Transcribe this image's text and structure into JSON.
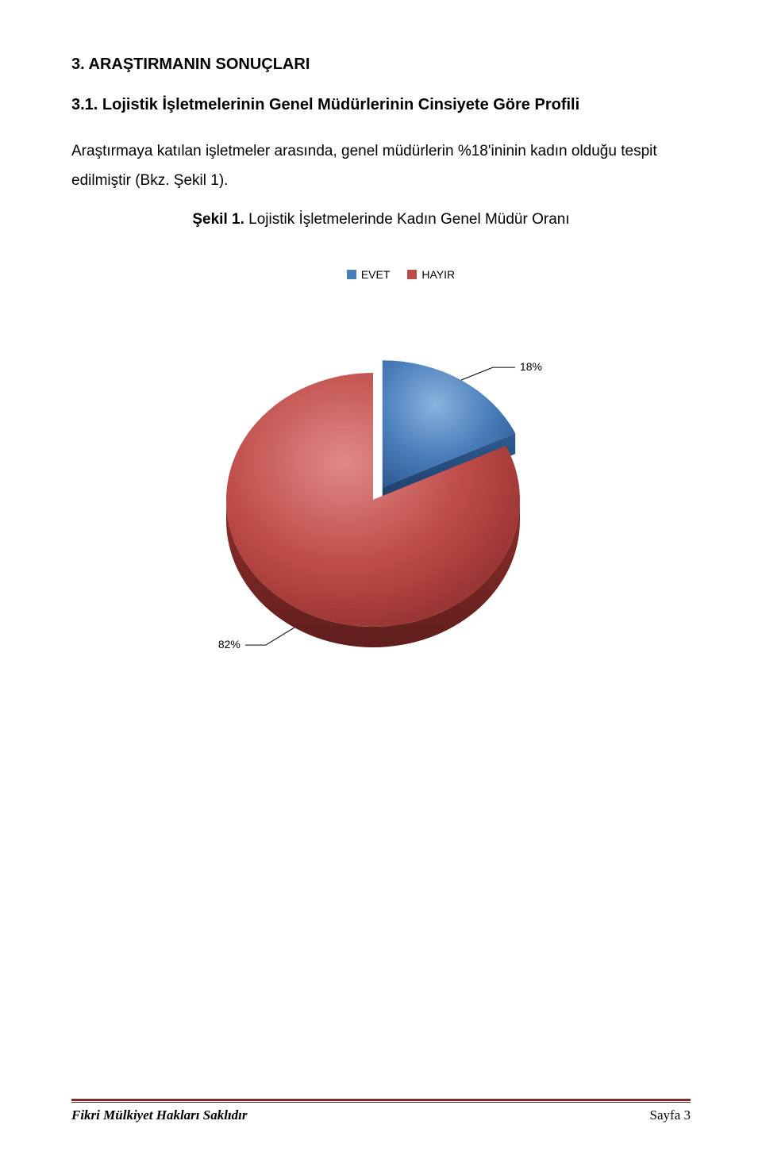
{
  "headings": {
    "h1": "3. ARAŞTIRMANIN SONUÇLARI",
    "h2": "3.1. Lojistik İşletmelerinin Genel Müdürlerinin Cinsiyete Göre Profili"
  },
  "body": "Araştırmaya katılan işletmeler arasında, genel müdürlerin %18'ininin kadın olduğu tespit edilmiştir (Bkz. Şekil 1).",
  "figure": {
    "title_bold": "Şekil 1.",
    "title_rest": " Lojistik İşletmelerinde Kadın Genel Müdür Oranı"
  },
  "chart": {
    "type": "pie",
    "legend": [
      {
        "label": "EVET",
        "color": "#4a7ebb"
      },
      {
        "label": "HAYIR",
        "color": "#be4b48"
      }
    ],
    "slices": [
      {
        "name": "EVET",
        "value": 18,
        "label": "18%",
        "color_top": "#6a9bd1",
        "color_mid": "#4a7ebb",
        "color_bot": "#2e5a93"
      },
      {
        "name": "HAYIR",
        "value": 82,
        "label": "82%",
        "color_top": "#d46a67",
        "color_mid": "#be4b48",
        "color_bot": "#8f2f2d"
      }
    ],
    "background": "#ffffff",
    "label_fontsize": 14,
    "explode_slice": 0,
    "explode_distance": 22
  },
  "footer": {
    "left": "Fikri Mülkiyet Hakları Saklıdır",
    "right": "Sayfa 3",
    "rule_color": "#7b2f2f"
  }
}
